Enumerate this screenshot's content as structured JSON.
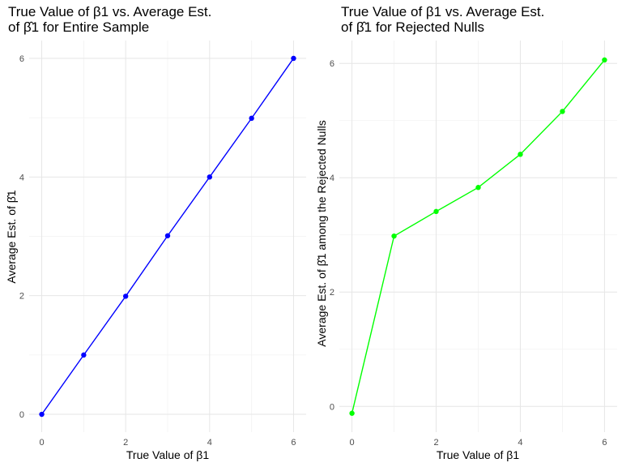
{
  "chart_data": [
    {
      "type": "line",
      "title_lines": [
        "True Value of β1 vs. Average Est.",
        "of β̂1 for Entire Sample"
      ],
      "xlabel": "True Value of β1",
      "ylabel": "Average Est. of β̂1",
      "x": [
        0,
        1,
        2,
        3,
        4,
        5,
        6
      ],
      "y": [
        0.0,
        1.0,
        1.99,
        3.01,
        4.0,
        4.99,
        6.0
      ],
      "xlim": [
        -0.3,
        6.3
      ],
      "ylim": [
        -0.3,
        6.3
      ],
      "xticks": [
        0,
        2,
        4,
        6
      ],
      "yticks": [
        0,
        2,
        4,
        6
      ],
      "color": "#0000ff",
      "grid": true
    },
    {
      "type": "line",
      "title_lines": [
        "True Value of β1 vs. Average Est.",
        "of β̂1 for Rejected Nulls"
      ],
      "xlabel": "True Value of β1",
      "ylabel": "Average Est. of β̂1 among the Rejected Nulls",
      "x": [
        0,
        1,
        2,
        3,
        4,
        5,
        6
      ],
      "y": [
        -0.12,
        2.98,
        3.41,
        3.83,
        4.41,
        5.16,
        6.06
      ],
      "xlim": [
        -0.3,
        6.3
      ],
      "ylim": [
        -0.45,
        6.4
      ],
      "xticks": [
        0,
        2,
        4,
        6
      ],
      "yticks": [
        0,
        2,
        4,
        6
      ],
      "color": "#00ff00",
      "grid": true
    }
  ]
}
